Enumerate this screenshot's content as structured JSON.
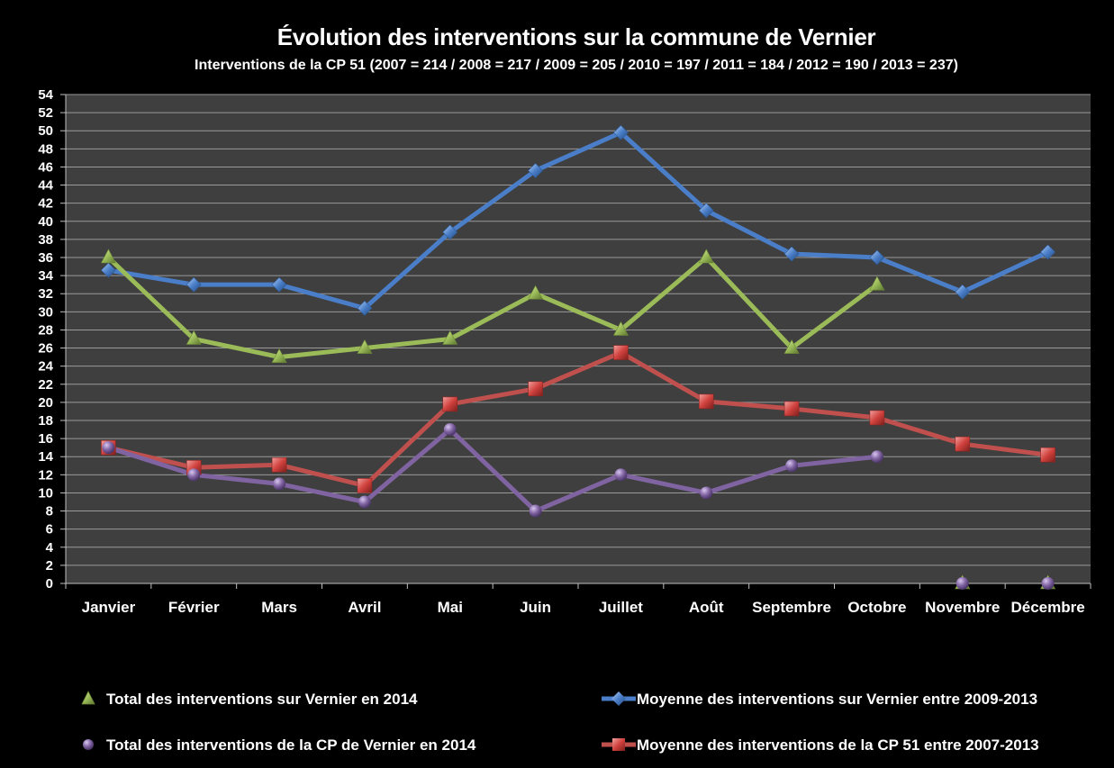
{
  "chart_data": {
    "type": "line",
    "title": "Évolution des interventions sur la commune de Vernier",
    "subtitle": "Interventions de la CP 51 (2007 = 214 /  2008 = 217 / 2009 = 205 / 2010 = 197 / 2011 = 184 / 2012 = 190 / 2013 = 237)",
    "categories": [
      "Janvier",
      "Février",
      "Mars",
      "Avril",
      "Mai",
      "Juin",
      "Juillet",
      "Août",
      "Septembre",
      "Octobre",
      "Novembre",
      "Décembre"
    ],
    "ylim": [
      0,
      54
    ],
    "yticks": [
      0,
      2,
      4,
      6,
      8,
      10,
      12,
      14,
      16,
      18,
      20,
      22,
      24,
      26,
      28,
      30,
      32,
      34,
      36,
      38,
      40,
      42,
      44,
      46,
      48,
      50,
      52,
      54
    ],
    "grid": true,
    "legend_position": "bottom",
    "plot_background": "#3f3f3f",
    "series": [
      {
        "name": "Moyenne des interventions sur Vernier entre 2009-2013",
        "color": "#4a7ec8",
        "marker": "diamond",
        "values": [
          34.6,
          33,
          33,
          30.4,
          38.8,
          45.6,
          49.8,
          41.2,
          36.4,
          36,
          32.2,
          36.6
        ]
      },
      {
        "name": "Total des interventions sur Vernier en 2014",
        "color": "#9bbb59",
        "marker": "triangle",
        "values": [
          36,
          27,
          25,
          26,
          27,
          32,
          28,
          36,
          26,
          33,
          0,
          0
        ]
      },
      {
        "name": "Moyenne des interventions de la CP 51 entre 2007-2013",
        "color": "#c0504d",
        "marker": "square",
        "values": [
          15,
          12.8,
          13.1,
          10.8,
          19.8,
          21.5,
          25.5,
          20.1,
          19.3,
          18.3,
          15.4,
          14.2
        ]
      },
      {
        "name": "Total des interventions de la CP de Vernier en 2014",
        "color": "#8064a2",
        "marker": "circle",
        "values": [
          15,
          12,
          11,
          9,
          17,
          8,
          12,
          10,
          13,
          14,
          0,
          0
        ]
      }
    ]
  },
  "legend": {
    "left_top": "Total des interventions sur Vernier en 2014",
    "left_bottom": "Total des interventions de la CP de Vernier en 2014",
    "right_top": "Moyenne des interventions sur Vernier entre 2009-2013",
    "right_bottom": "Moyenne des interventions de la CP 51 entre 2007-2013"
  }
}
